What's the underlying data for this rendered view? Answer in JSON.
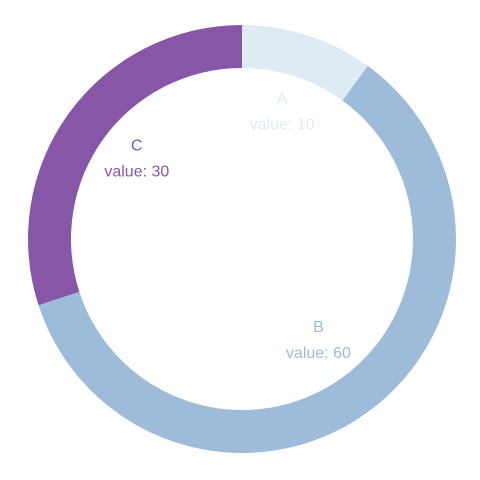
{
  "chart_data": {
    "type": "pie",
    "variant": "donut",
    "title": "",
    "value_label_prefix": "value: ",
    "slices": [
      {
        "name": "A",
        "value": 10,
        "color": "#deebf4"
      },
      {
        "name": "B",
        "value": 60,
        "color": "#9ebcd9"
      },
      {
        "name": "C",
        "value": 30,
        "color": "#8856a7"
      }
    ],
    "start_angle": "12 o'clock",
    "direction": "clockwise",
    "legend": "none"
  }
}
